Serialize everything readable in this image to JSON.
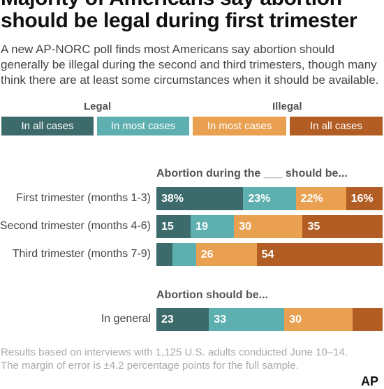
{
  "title_line1": "Majority of Americans say abortion",
  "title_line2": "should be legal during first trimester",
  "subtitle": "A new AP-NORC poll finds most Americans say abortion should generally be illegal during the second and third trimesters, though many think there are at least some circumstances when it should be available.",
  "legend": {
    "legal_label": "Legal",
    "illegal_label": "Illegal",
    "items": [
      "In all cases",
      "In most cases",
      "In most cases",
      "In all cases"
    ]
  },
  "colors": {
    "legal_all": "#3d6a6b",
    "legal_most": "#5eafb0",
    "illegal_most": "#e9a151",
    "illegal_all": "#b15d23"
  },
  "footnote_line1": "Results based on interviews with 1,125 U.S. adults conducted June 10–14.",
  "footnote_line2": "The margin of error is ±4.2 percentage points for the full sample.",
  "logo": "AP",
  "chart_data": {
    "type": "bar",
    "orientation": "horizontal",
    "stacked": true,
    "series": [
      {
        "name": "Legal in all cases"
      },
      {
        "name": "Legal in most cases"
      },
      {
        "name": "Illegal in most cases"
      },
      {
        "name": "Illegal in all cases"
      }
    ],
    "groups": [
      {
        "heading": "Abortion during the ___ should be...",
        "rows": [
          {
            "label": "First trimester (months 1-3)",
            "values": [
              38,
              23,
              22,
              16
            ],
            "labels": [
              "38%",
              "23%",
              "22%",
              "16%"
            ]
          },
          {
            "label": "Second trimester (months 4-6)",
            "values": [
              15,
              19,
              30,
              35
            ],
            "labels": [
              "15",
              "19",
              "30",
              "35"
            ]
          },
          {
            "label": "Third trimester (months 7-9)",
            "values": [
              7,
              10,
              26,
              54
            ],
            "labels": [
              "",
              "",
              "26",
              "54"
            ]
          }
        ]
      },
      {
        "heading": "Abortion should be...",
        "rows": [
          {
            "label": "In general",
            "values": [
              23,
              33,
              30,
              13
            ],
            "labels": [
              "23",
              "33",
              "30",
              ""
            ]
          }
        ]
      }
    ]
  }
}
